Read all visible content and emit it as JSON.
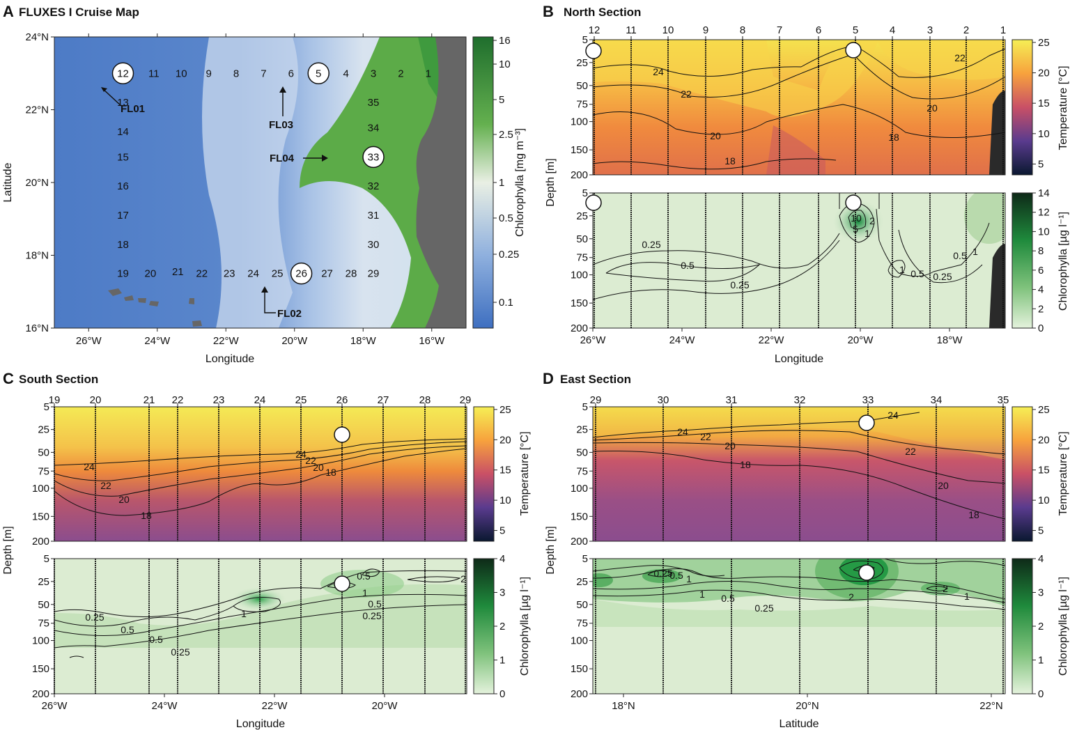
{
  "colors": {
    "ocean_deep": "#4a79c4",
    "ocean_mid": "#9dbbe3",
    "land": "#666666",
    "warm_top": "#f7e24a",
    "warm_mid": "#f5a03a",
    "warm_low": "#c8565a",
    "cool": "#8a4c8e",
    "chl_low": "#dcecd2",
    "chl_high": "#1f8f3a"
  },
  "chart_data": [
    {
      "id": "A",
      "type": "heatmap",
      "letter": "A",
      "title": "FLUXES I Cruise Map",
      "xlabel": "Longitude",
      "ylabel": "Latitude",
      "x_ticks": [
        "26°W",
        "24°W",
        "22°W",
        "20°W",
        "18°W",
        "16°W"
      ],
      "y_ticks": [
        "24°N",
        "22°N",
        "20°N",
        "18°N",
        "16°N"
      ],
      "xlim": [
        -27,
        -15
      ],
      "ylim": [
        16,
        24
      ],
      "colorbar": {
        "label": "Chlorophylla [mg m⁻³]",
        "ticks": [
          "16",
          "10",
          "5",
          "2.5",
          "1",
          "0.5",
          "0.25",
          "0.1"
        ]
      },
      "stations": [
        {
          "label": "1",
          "lon": -16.1,
          "lat": 23.0,
          "circled": false
        },
        {
          "label": "2",
          "lon": -16.9,
          "lat": 23.0,
          "circled": false
        },
        {
          "label": "3",
          "lon": -17.7,
          "lat": 23.0,
          "circled": false
        },
        {
          "label": "4",
          "lon": -18.5,
          "lat": 23.0,
          "circled": false
        },
        {
          "label": "5",
          "lon": -19.3,
          "lat": 23.0,
          "circled": true
        },
        {
          "label": "6",
          "lon": -20.1,
          "lat": 23.0,
          "circled": false
        },
        {
          "label": "7",
          "lon": -20.9,
          "lat": 23.0,
          "circled": false
        },
        {
          "label": "8",
          "lon": -21.7,
          "lat": 23.0,
          "circled": false
        },
        {
          "label": "9",
          "lon": -22.5,
          "lat": 23.0,
          "circled": false
        },
        {
          "label": "10",
          "lon": -23.3,
          "lat": 23.0,
          "circled": false
        },
        {
          "label": "11",
          "lon": -24.1,
          "lat": 23.0,
          "circled": false
        },
        {
          "label": "12",
          "lon": -25.0,
          "lat": 23.0,
          "circled": true
        },
        {
          "label": "13",
          "lon": -25.0,
          "lat": 22.2,
          "circled": false
        },
        {
          "label": "14",
          "lon": -25.0,
          "lat": 21.4,
          "circled": false
        },
        {
          "label": "15",
          "lon": -25.0,
          "lat": 20.7,
          "circled": false
        },
        {
          "label": "16",
          "lon": -25.0,
          "lat": 19.9,
          "circled": false
        },
        {
          "label": "17",
          "lon": -25.0,
          "lat": 19.1,
          "circled": false
        },
        {
          "label": "18",
          "lon": -25.0,
          "lat": 18.3,
          "circled": false
        },
        {
          "label": "19",
          "lon": -25.0,
          "lat": 17.5,
          "circled": false
        },
        {
          "label": "20",
          "lon": -24.2,
          "lat": 17.5,
          "circled": false
        },
        {
          "label": "21",
          "lon": -23.4,
          "lat": 17.55,
          "circled": false
        },
        {
          "label": "22",
          "lon": -22.7,
          "lat": 17.5,
          "circled": false
        },
        {
          "label": "23",
          "lon": -21.9,
          "lat": 17.5,
          "circled": false
        },
        {
          "label": "24",
          "lon": -21.2,
          "lat": 17.5,
          "circled": false
        },
        {
          "label": "25",
          "lon": -20.5,
          "lat": 17.5,
          "circled": false
        },
        {
          "label": "26",
          "lon": -19.8,
          "lat": 17.5,
          "circled": true
        },
        {
          "label": "27",
          "lon": -19.05,
          "lat": 17.5,
          "circled": false
        },
        {
          "label": "28",
          "lon": -18.35,
          "lat": 17.5,
          "circled": false
        },
        {
          "label": "29",
          "lon": -17.7,
          "lat": 17.5,
          "circled": false
        },
        {
          "label": "30",
          "lon": -17.7,
          "lat": 18.3,
          "circled": false
        },
        {
          "label": "31",
          "lon": -17.7,
          "lat": 19.1,
          "circled": false
        },
        {
          "label": "32",
          "lon": -17.7,
          "lat": 19.9,
          "circled": false
        },
        {
          "label": "33",
          "lon": -17.7,
          "lat": 20.7,
          "circled": true
        },
        {
          "label": "34",
          "lon": -17.7,
          "lat": 21.5,
          "circled": false
        },
        {
          "label": "35",
          "lon": -17.7,
          "lat": 22.2,
          "circled": false
        }
      ],
      "float_labels": [
        "FL01",
        "FL02",
        "FL03",
        "FL04"
      ]
    },
    {
      "id": "B",
      "type": "heatmap",
      "letter": "B",
      "title": "North Section",
      "xlabel": "Longitude",
      "ylabel": "Depth [m]",
      "x_ticks": [
        "26°W",
        "24°W",
        "22°W",
        "20°W",
        "18°W"
      ],
      "y_ticks": [
        "5",
        "25",
        "50",
        "75",
        "100",
        "150",
        "200"
      ],
      "stations": [
        "12",
        "11",
        "10",
        "9",
        "8",
        "7",
        "6",
        "5",
        "4",
        "3",
        "2",
        "1"
      ],
      "temperature": {
        "colorbar_label": "Temperature [°C]",
        "colorbar_ticks": [
          "25",
          "20",
          "15",
          "10",
          "5"
        ],
        "contours": [
          "24",
          "22",
          "22",
          "20",
          "20",
          "18",
          "18"
        ]
      },
      "chlorophyll": {
        "colorbar_label": "Chlorophylla [µg l⁻¹]",
        "colorbar_ticks": [
          "14",
          "12",
          "10",
          "8",
          "6",
          "4",
          "2",
          "0"
        ],
        "contours": [
          "0.25",
          "0.5",
          "0.25",
          "10",
          "2",
          "5",
          "1",
          "1",
          "0.5",
          "0.25",
          "0.5",
          "1"
        ]
      }
    },
    {
      "id": "C",
      "type": "heatmap",
      "letter": "C",
      "title": "South Section",
      "xlabel": "Longitude",
      "ylabel": "Depth [m]",
      "x_ticks": [
        "26°W",
        "24°W",
        "22°W",
        "20°W"
      ],
      "y_ticks": [
        "5",
        "25",
        "50",
        "75",
        "100",
        "150",
        "200"
      ],
      "stations": [
        "19",
        "20",
        "21",
        "22",
        "23",
        "24",
        "25",
        "26",
        "27",
        "28",
        "29"
      ],
      "temperature": {
        "colorbar_label": "Temperature [°C]",
        "colorbar_ticks": [
          "25",
          "20",
          "15",
          "10",
          "5"
        ],
        "contours": [
          "24",
          "22",
          "20",
          "18",
          "24",
          "22",
          "20",
          "18"
        ]
      },
      "chlorophyll": {
        "colorbar_label": "Chlorophylla [µg l⁻¹]",
        "colorbar_ticks": [
          "4",
          "3",
          "2",
          "1",
          "0"
        ],
        "contours": [
          "0.25",
          "0.5",
          "0.5",
          "0.25",
          "1",
          "0.5",
          "1",
          "0.5",
          "0.25",
          "2"
        ]
      }
    },
    {
      "id": "D",
      "type": "heatmap",
      "letter": "D",
      "title": "East Section",
      "xlabel": "Latitude",
      "ylabel": "Depth [m]",
      "x_ticks": [
        "18°N",
        "20°N",
        "22°N"
      ],
      "y_ticks": [
        "5",
        "25",
        "50",
        "75",
        "100",
        "150",
        "200"
      ],
      "stations": [
        "29",
        "30",
        "31",
        "32",
        "33",
        "34",
        "35"
      ],
      "temperature": {
        "colorbar_label": "Temperature [°C]",
        "colorbar_ticks": [
          "25",
          "20",
          "15",
          "10",
          "5"
        ],
        "contours": [
          "24",
          "22",
          "20",
          "18",
          "24",
          "22",
          "20",
          "18"
        ]
      },
      "chlorophyll": {
        "colorbar_label": "Chlorophylla [µg l⁻¹]",
        "colorbar_ticks": [
          "4",
          "3",
          "2",
          "1",
          "0"
        ],
        "contours": [
          "0.25",
          "0.5",
          "1",
          "1",
          "0.5",
          "0.25",
          "2",
          "3",
          "2",
          "1"
        ]
      }
    }
  ]
}
